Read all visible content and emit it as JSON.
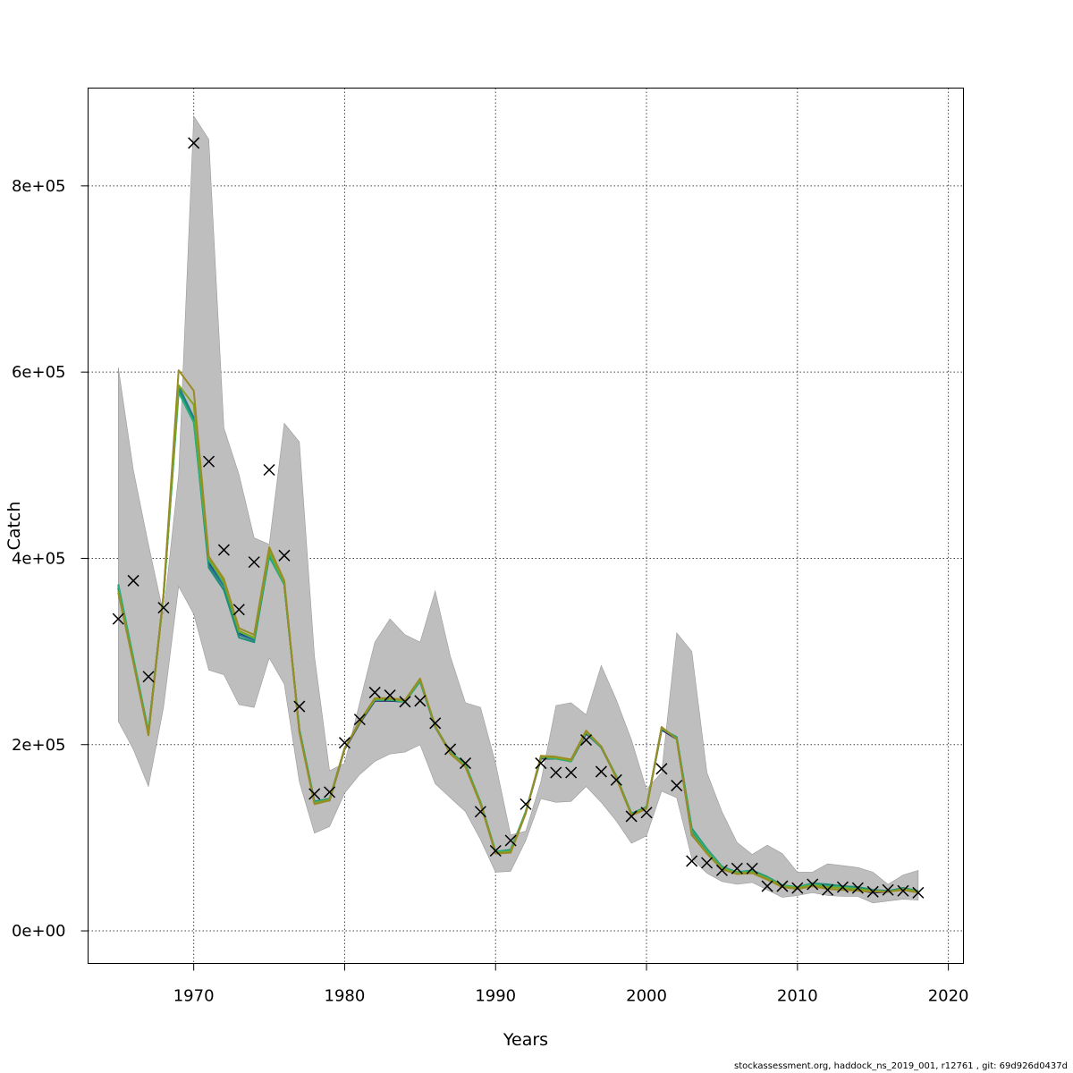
{
  "chart_data": {
    "type": "line",
    "xlabel": "Years",
    "ylabel": "Catch",
    "xlim": [
      1963,
      2021
    ],
    "ylim": [
      -35000,
      905000
    ],
    "x_ticks": [
      1970,
      1980,
      1990,
      2000,
      2010,
      2020
    ],
    "y_ticks": [
      0,
      200000,
      400000,
      600000,
      800000
    ],
    "y_tick_labels": [
      "0e+00",
      "2e+05",
      "4e+05",
      "6e+05",
      "8e+05"
    ],
    "grid": true,
    "colors": {
      "band": "#bebebe",
      "band_edge": "#9a9a9a",
      "observed_marker": "#000000",
      "grid": "#444444",
      "series": [
        "#1a1a6e",
        "#2a6f97",
        "#1d8f74",
        "#2ab07a",
        "#7fa61c",
        "#9a8c25"
      ]
    },
    "years": [
      1965,
      1966,
      1967,
      1968,
      1969,
      1970,
      1971,
      1972,
      1973,
      1974,
      1975,
      1976,
      1977,
      1978,
      1979,
      1980,
      1981,
      1982,
      1983,
      1984,
      1985,
      1986,
      1987,
      1988,
      1989,
      1990,
      1991,
      1992,
      1993,
      1994,
      1995,
      1996,
      1997,
      1998,
      1999,
      2000,
      2001,
      2002,
      2003,
      2004,
      2005,
      2006,
      2007,
      2008,
      2009,
      2010,
      2011,
      2012,
      2013,
      2014,
      2015,
      2016,
      2017,
      2018
    ],
    "upper": [
      605000,
      495000,
      415000,
      340000,
      490000,
      875000,
      850000,
      540000,
      490000,
      422000,
      415000,
      545000,
      525000,
      295000,
      172000,
      180000,
      245000,
      310000,
      335000,
      318000,
      310000,
      365000,
      295000,
      245000,
      240000,
      180000,
      103000,
      107000,
      160000,
      242000,
      245000,
      232000,
      285000,
      248000,
      205000,
      152000,
      170000,
      320000,
      300000,
      170000,
      128000,
      95000,
      82000,
      92000,
      83000,
      63000,
      63000,
      72000,
      70000,
      68000,
      63000,
      50000,
      60000,
      65000
    ],
    "lower": [
      225000,
      195000,
      155000,
      240000,
      370000,
      340000,
      280000,
      275000,
      243000,
      240000,
      293000,
      265000,
      160000,
      105000,
      112000,
      148000,
      168000,
      182000,
      190000,
      192000,
      200000,
      158000,
      143000,
      128000,
      98000,
      63000,
      64000,
      97000,
      142000,
      138000,
      139000,
      155000,
      138000,
      118000,
      94000,
      102000,
      150000,
      143000,
      78000,
      62000,
      53000,
      50000,
      52000,
      44000,
      36000,
      38000,
      41000,
      38000,
      37000,
      37000,
      30000,
      32000,
      34000,
      33000
    ],
    "observed": [
      335000,
      376000,
      273000,
      347000,
      null,
      846000,
      504000,
      409000,
      345000,
      396000,
      495000,
      403000,
      241000,
      147000,
      149000,
      202000,
      227000,
      256000,
      253000,
      246000,
      247000,
      223000,
      195000,
      180000,
      128000,
      86000,
      97000,
      136000,
      180000,
      170000,
      170000,
      205000,
      171000,
      162000,
      123000,
      127000,
      174000,
      156000,
      75000,
      73000,
      65000,
      67000,
      67000,
      48000,
      48000,
      46000,
      50000,
      44000,
      47000,
      46000,
      42000,
      44000,
      43000,
      41000
    ],
    "series": [
      {
        "values": [
          368000,
          290000,
          212000,
          360000,
          582000,
          548000,
          396000,
          372000,
          320000,
          314000,
          404000,
          372000,
          215000,
          138000,
          140000,
          195000,
          223000,
          247000,
          247000,
          246000,
          268000,
          219000,
          191000,
          178000,
          137000,
          84000,
          86000,
          127000,
          185000,
          185000,
          182000,
          212000,
          197000,
          165000,
          125000,
          132000,
          216000,
          206000,
          103000,
          84000,
          67000,
          62000,
          63000,
          56000,
          48000,
          46000,
          49000,
          48000,
          46000,
          44000,
          41000,
          42000,
          46000,
          42000
        ]
      },
      {
        "values": [
          370000,
          292000,
          213000,
          361000,
          585000,
          551000,
          393000,
          370000,
          318000,
          312000,
          405000,
          372000,
          216000,
          139000,
          141000,
          196000,
          224000,
          248000,
          248000,
          246000,
          268000,
          219000,
          191000,
          178000,
          138000,
          85000,
          86000,
          128000,
          186000,
          185000,
          183000,
          213000,
          197000,
          166000,
          125000,
          132000,
          217000,
          207000,
          107000,
          86000,
          68000,
          62000,
          64000,
          57000,
          49000,
          46000,
          50000,
          49000,
          48000,
          47000,
          44000,
          42000,
          46000,
          42000
        ]
      },
      {
        "values": [
          372000,
          293000,
          214000,
          360000,
          583000,
          548000,
          390000,
          366000,
          315000,
          310000,
          402000,
          372000,
          216000,
          139000,
          142000,
          196000,
          225000,
          248000,
          248000,
          247000,
          269000,
          220000,
          192000,
          179000,
          138000,
          85000,
          87000,
          128000,
          186000,
          185000,
          183000,
          213000,
          198000,
          166000,
          126000,
          133000,
          217000,
          208000,
          110000,
          88000,
          69000,
          63000,
          65000,
          58000,
          49000,
          47000,
          51000,
          50000,
          48000,
          47000,
          44000,
          43000,
          46000,
          43000
        ]
      },
      {
        "values": [
          371000,
          293000,
          213000,
          359000,
          578000,
          546000,
          398000,
          373000,
          321000,
          314000,
          404000,
          372000,
          215000,
          138000,
          141000,
          196000,
          224000,
          248000,
          248000,
          246000,
          268000,
          219000,
          191000,
          178000,
          138000,
          85000,
          86000,
          128000,
          186000,
          185000,
          182000,
          213000,
          197000,
          166000,
          125000,
          132000,
          218000,
          207000,
          108000,
          87000,
          68000,
          63000,
          64000,
          57000,
          49000,
          47000,
          50000,
          48000,
          47000,
          45000,
          43000,
          42000,
          45000,
          42000
        ]
      },
      {
        "values": [
          365000,
          289000,
          211000,
          361000,
          586000,
          565000,
          400000,
          375000,
          322000,
          315000,
          408000,
          374000,
          214000,
          137000,
          141000,
          196000,
          224000,
          249000,
          249000,
          247000,
          270000,
          220000,
          191000,
          177000,
          137000,
          84000,
          85000,
          127000,
          187000,
          186000,
          183000,
          214000,
          198000,
          165000,
          125000,
          132000,
          218000,
          206000,
          104000,
          84000,
          67000,
          62000,
          63000,
          56000,
          48000,
          46000,
          49000,
          47000,
          46000,
          45000,
          43000,
          42000,
          45000,
          42000
        ]
      },
      {
        "values": [
          363000,
          288000,
          210000,
          362000,
          602000,
          580000,
          402000,
          378000,
          325000,
          318000,
          412000,
          376000,
          213000,
          136000,
          140000,
          196000,
          225000,
          250000,
          250000,
          248000,
          271000,
          220000,
          190000,
          176000,
          136000,
          83000,
          84000,
          126000,
          188000,
          187000,
          184000,
          215000,
          198000,
          164000,
          124000,
          131000,
          219000,
          206000,
          103000,
          83000,
          66000,
          61000,
          62000,
          55000,
          47000,
          45000,
          48000,
          45000,
          44000,
          43000,
          42000,
          42000,
          44000,
          41000
        ]
      }
    ]
  },
  "footer": {
    "credit": "stockassessment.org, haddock_ns_2019_001, r12761 , git: 69d926d0437d"
  }
}
